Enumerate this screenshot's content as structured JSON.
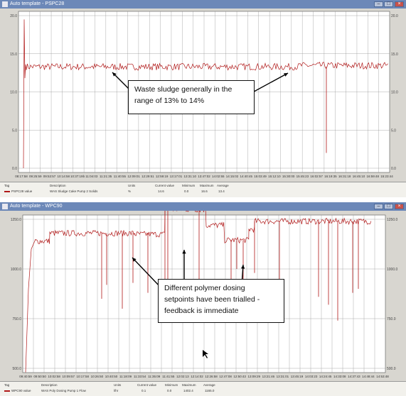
{
  "top": {
    "window_title": "Auto template - PSPC28",
    "y_ticks_left": [
      "20.0",
      "15.0",
      "10.0",
      "5.0",
      "0.0"
    ],
    "y_ticks_right": [
      "20.0",
      "15.0",
      "10.0",
      "5.0",
      "0.0"
    ],
    "x_ticks": [
      "08:17:58",
      "09:25:59",
      "09:53:57",
      "10:14:58",
      "10:37:19b",
      "11:04:03",
      "11:21:35",
      "11:40:55",
      "12:09:01",
      "12:29:51",
      "12:59:19",
      "13:17:01",
      "13:31:10",
      "13:47:02",
      "14:02:55",
      "14:15:02",
      "14:40:45",
      "15:03:49",
      "15:12:10",
      "15:30:00",
      "15:45:23",
      "16:02:57",
      "16:19:35",
      "16:31:18",
      "16:45:10",
      "16:59:48",
      "15:23:44"
    ],
    "legend": {
      "headers": {
        "tag": "Tag",
        "description": "Description",
        "units": "Units",
        "current": "Current value",
        "minimum": "Minimum",
        "maximum": "Maximum",
        "average": "Average"
      },
      "row": {
        "tag": "PSPC28 value",
        "description": "WAS Sludge Cake Pump 2 Solids",
        "units": "%",
        "current": "14.6",
        "minimum": "0.0",
        "maximum": "16.6",
        "average": "13.4"
      }
    },
    "annotation": [
      "Waste sludge generally in the",
      "range of 13% to 14%"
    ]
  },
  "bottom": {
    "window_title": "Auto template - WPC90",
    "y_ticks_left": [
      "1250.0",
      "1000.0",
      "750.0",
      "500.0"
    ],
    "y_ticks_right": [
      "1250.0",
      "1000.0",
      "750.0",
      "500.0"
    ],
    "x_ticks": [
      "09:40:59",
      "09:50:50",
      "10:02:58",
      "10:09:57",
      "10:17:58",
      "10:26:50",
      "10:40:50",
      "11:18:09",
      "11:33:54",
      "11:35:09",
      "11:41:55",
      "12:02:13",
      "12:14:02",
      "12:26:58",
      "12:47:08",
      "12:50:43",
      "13:09:29",
      "13:21:46",
      "13:31:01",
      "13:45:19",
      "14:03:23",
      "14:24:45",
      "14:33:08",
      "14:37:43",
      "14:48:44",
      "14:53:48"
    ],
    "legend": {
      "headers": {
        "tag": "Tag",
        "description": "Description",
        "units": "Units",
        "current": "Current value",
        "minimum": "Minimum",
        "maximum": "Maximum",
        "average": "Average"
      },
      "row": {
        "tag": "WPC90 value",
        "description": "WAS Poly Dosing Pump 1 Flow",
        "units": "l/hr",
        "current": "0.1",
        "minimum": "0.0",
        "maximum": "1402.4",
        "average": "1165.0"
      }
    },
    "annotation": [
      "Different polymer dosing",
      "setpoints have been trialled  -",
      "feedback is immediate"
    ]
  },
  "colors": {
    "trace": "#b01818",
    "titlebar": "#6c88b8",
    "grid": "#8a8a8a",
    "panel": "#d8d6d0"
  },
  "icons": [
    "app-icon",
    "minimize-icon",
    "maximize-icon",
    "close-icon",
    "arrow-icon",
    "mouse-cursor-icon"
  ]
}
